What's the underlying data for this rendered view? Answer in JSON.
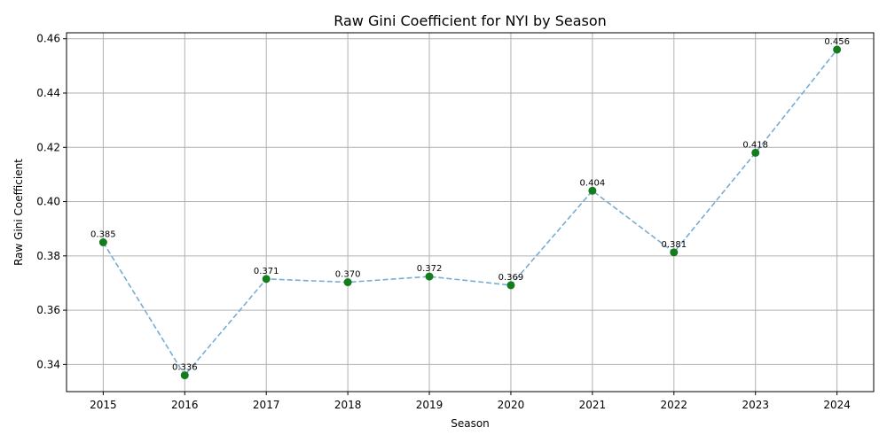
{
  "chart_data": {
    "type": "line",
    "title": "Raw Gini Coefficient for NYI by Season",
    "xlabel": "Season",
    "ylabel": "Raw Gini Coefficient",
    "x": [
      2015,
      2016,
      2017,
      2018,
      2019,
      2020,
      2021,
      2022,
      2023,
      2024
    ],
    "series": [
      {
        "values": [
          0.385,
          0.336,
          0.3715,
          0.3703,
          0.3724,
          0.3692,
          0.404,
          0.3813,
          0.418,
          0.456
        ],
        "labels": [
          "0.385",
          "0.336",
          "0.371",
          "0.370",
          "0.372",
          "0.369",
          "0.404",
          "0.381",
          "0.418",
          "0.456"
        ],
        "line_color": "#76add5",
        "line_style": "dashed",
        "marker_color": "#137d1d"
      }
    ],
    "xlim": [
      2014.55,
      2024.45
    ],
    "ylim": [
      0.33,
      0.4622
    ],
    "yticks": [
      0.34,
      0.36,
      0.38,
      0.4,
      0.42,
      0.44,
      0.46
    ],
    "ytick_labels": [
      "0.34",
      "0.36",
      "0.38",
      "0.40",
      "0.42",
      "0.44",
      "0.46"
    ],
    "xtick_labels": [
      "2015",
      "2016",
      "2017",
      "2018",
      "2019",
      "2020",
      "2021",
      "2022",
      "2023",
      "2024"
    ],
    "grid": true,
    "legend": "none"
  }
}
